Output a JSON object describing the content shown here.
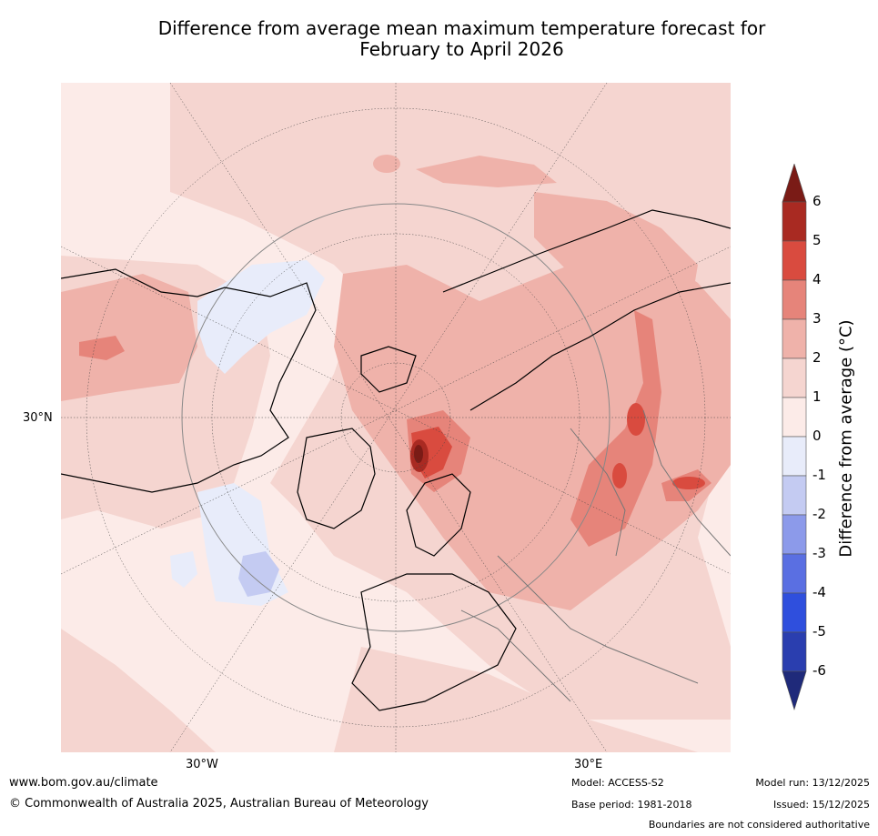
{
  "title_line1": "Difference from average mean maximum temperature forecast for",
  "title_line2": "February to April 2026",
  "map": {
    "lat_label": "30°N",
    "lon_labels": [
      "30°W",
      "30°E"
    ]
  },
  "colorbar": {
    "label": "Difference from average (°C)",
    "ticks": [
      "6",
      "5",
      "4",
      "3",
      "2",
      "1",
      "0",
      "-1",
      "-2",
      "-3",
      "-4",
      "-5",
      "-6"
    ],
    "colors": [
      "#7a1b16",
      "#a92a22",
      "#d94b3f",
      "#e6847a",
      "#efb2aa",
      "#f5d5d0",
      "#fcebe8",
      "#e8ecfa",
      "#c4cbf2",
      "#8c9aea",
      "#5a6fe2",
      "#2f4fdd",
      "#2a3eaf",
      "#1f2a7a"
    ]
  },
  "footer": {
    "url": "www.bom.gov.au/climate",
    "copyright": "© Commonwealth of Australia 2025, Australian Bureau of Meteorology",
    "model": "Model: ACCESS-S2",
    "base_period": "Base period: 1981-2018",
    "model_run": "Model run: 13/12/2025",
    "issued": "Issued: 15/12/2025",
    "boundaries_note": "Boundaries are not considered authoritative"
  }
}
